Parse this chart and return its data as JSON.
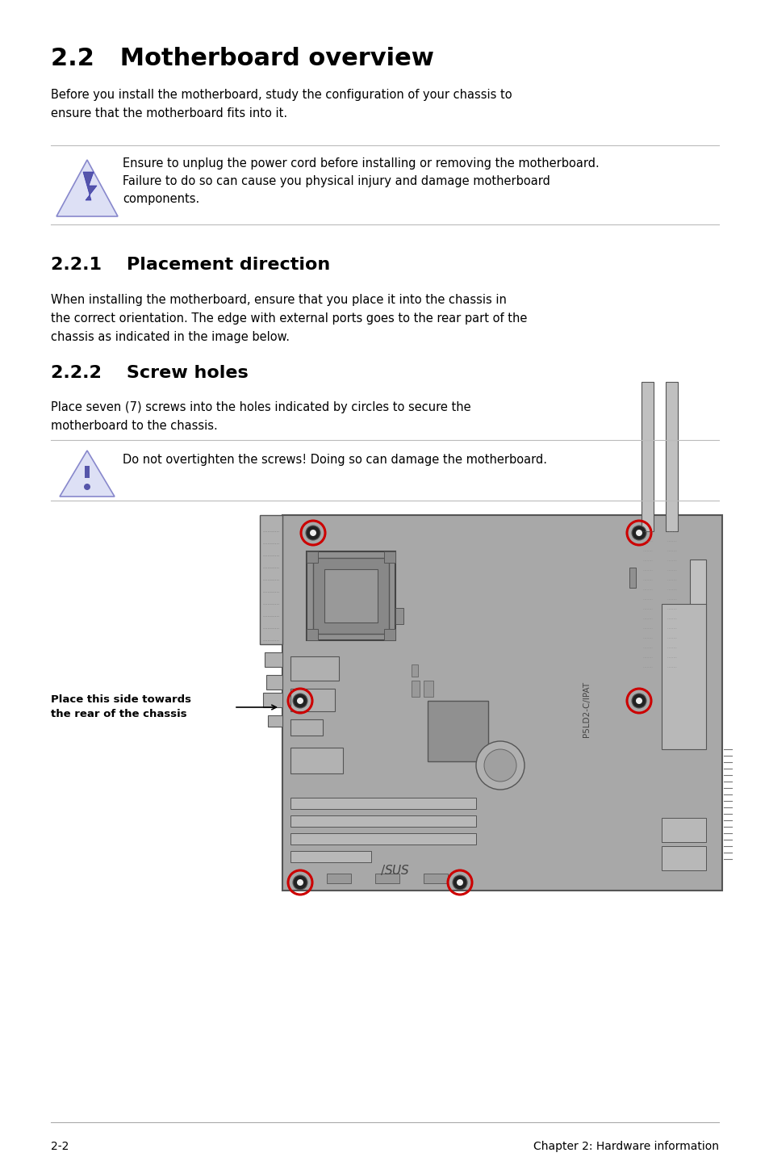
{
  "title": "2.2   Motherboard overview",
  "intro_text": "Before you install the motherboard, study the configuration of your chassis to\nensure that the motherboard fits into it.",
  "warning1_text": "Ensure to unplug the power cord before installing or removing the motherboard.\nFailure to do so can cause you physical injury and damage motherboard\ncomponents.",
  "section221_title": "2.2.1    Placement direction",
  "section221_text": "When installing the motherboard, ensure that you place it into the chassis in\nthe correct orientation. The edge with external ports goes to the rear part of the\nchassis as indicated in the image below.",
  "section222_title": "2.2.2    Screw holes",
  "section222_text": "Place seven (7) screws into the holes indicated by circles to secure the\nmotherboard to the chassis.",
  "warning2_text": "Do not overtighten the screws! Doing so can damage the motherboard.",
  "label_text": "Place this side towards\nthe rear of the chassis",
  "footer_left": "2-2",
  "footer_right": "Chapter 2: Hardware information",
  "bg_color": "#ffffff",
  "text_color": "#000000",
  "gray_color": "#aaaaaa",
  "board_color": "#a8a8a8",
  "board_edge": "#555555",
  "red_circle": "#cc0000"
}
